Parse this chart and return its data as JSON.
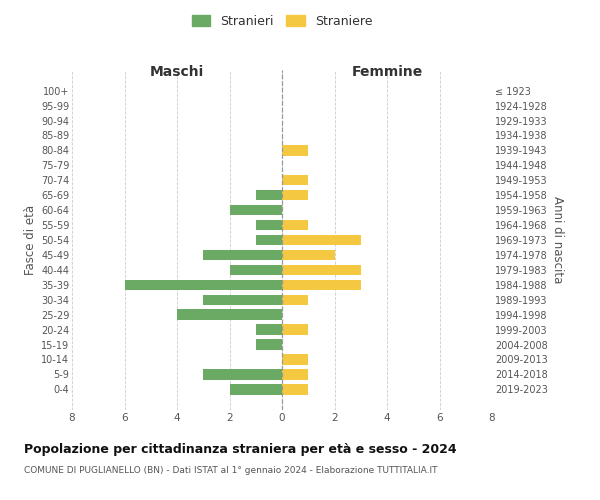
{
  "age_groups": [
    "100+",
    "95-99",
    "90-94",
    "85-89",
    "80-84",
    "75-79",
    "70-74",
    "65-69",
    "60-64",
    "55-59",
    "50-54",
    "45-49",
    "40-44",
    "35-39",
    "30-34",
    "25-29",
    "20-24",
    "15-19",
    "10-14",
    "5-9",
    "0-4"
  ],
  "birth_years": [
    "≤ 1923",
    "1924-1928",
    "1929-1933",
    "1934-1938",
    "1939-1943",
    "1944-1948",
    "1949-1953",
    "1954-1958",
    "1959-1963",
    "1964-1968",
    "1969-1973",
    "1974-1978",
    "1979-1983",
    "1984-1988",
    "1989-1993",
    "1994-1998",
    "1999-2003",
    "2004-2008",
    "2009-2013",
    "2014-2018",
    "2019-2023"
  ],
  "maschi": [
    0,
    0,
    0,
    0,
    0,
    0,
    0,
    1,
    2,
    1,
    1,
    3,
    2,
    6,
    3,
    4,
    1,
    1,
    0,
    3,
    2
  ],
  "femmine": [
    0,
    0,
    0,
    0,
    1,
    0,
    1,
    1,
    0,
    1,
    3,
    2,
    3,
    3,
    1,
    0,
    1,
    0,
    1,
    1,
    1
  ],
  "male_color": "#6aaa64",
  "female_color": "#f5c842",
  "grid_color": "#cccccc",
  "center_line_color": "#999999",
  "title": "Popolazione per cittadinanza straniera per età e sesso - 2024",
  "subtitle": "COMUNE DI PUGLIANELLO (BN) - Dati ISTAT al 1° gennaio 2024 - Elaborazione TUTTITALIA.IT",
  "header_left": "Maschi",
  "header_right": "Femmine",
  "ylabel_left": "Fasce di età",
  "ylabel_right": "Anni di nascita",
  "legend_male": "Stranieri",
  "legend_female": "Straniere",
  "xlim": 8,
  "bar_height": 0.7
}
